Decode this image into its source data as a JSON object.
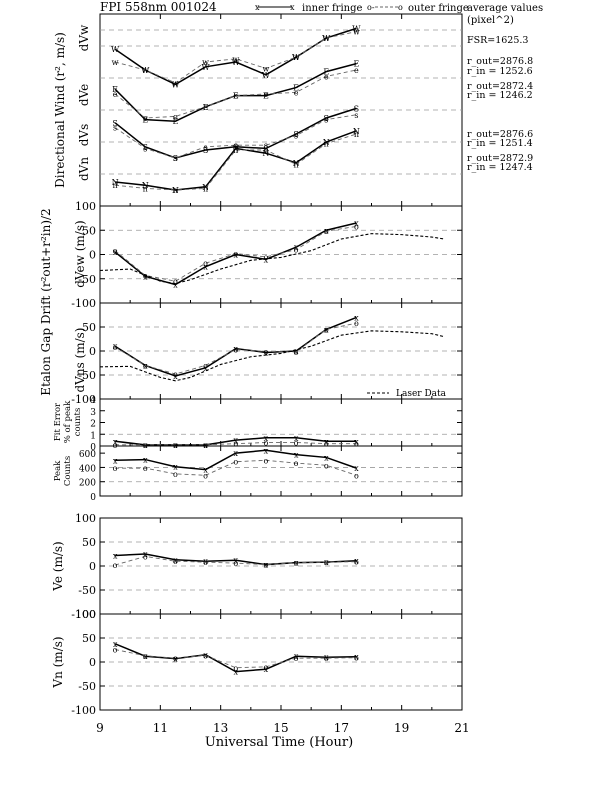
{
  "figure": {
    "title": "FPI 558nm 001024",
    "legend_inner": "inner fringe",
    "legend_outer": "outer fringe",
    "average_label_1": "average values",
    "average_label_2": "(pixel^2)",
    "xlabel": "Universal Time (Hour)",
    "laser_label": "Laser Data",
    "annotations": [
      "FSR=1625.3",
      "r_out=2876.8",
      "r_in = 1252.6",
      "r_out=2872.4",
      "r_in = 1246.2",
      "r_out=2876.6",
      "r_in = 1251.4",
      "r_out=2872.9",
      "r_in = 1247.4"
    ],
    "ylabel_top": "Directional Wind (r², m/s)",
    "ylabel_mid": "Etalon Gap Drift (r²out+r²in)/2",
    "ylabel_bottom": "Vn (m/s)"
  },
  "chart_data": [
    {
      "type": "line",
      "panel": "directional",
      "xlim": [
        9,
        21
      ],
      "ylabel_parts": [
        "dVw",
        "dVe",
        "dVs",
        "dVn"
      ],
      "series": [
        {
          "name": "dVw inner",
          "marker": "W",
          "x": [
            9.5,
            10.5,
            11.5,
            12.5,
            13.5,
            14.5,
            15.5,
            16.5,
            17.5
          ],
          "y": [
            18,
            5,
            -4,
            7,
            10,
            2,
            13,
            25,
            31
          ]
        },
        {
          "name": "dVw outer",
          "marker": "W",
          "x": [
            9.5,
            10.5,
            11.5,
            12.5,
            13.5,
            14.5,
            15.5,
            16.5,
            17.5
          ],
          "y": [
            10,
            5,
            -3,
            10,
            12,
            6,
            13,
            25,
            29
          ]
        },
        {
          "name": "dVe inner",
          "marker": "E",
          "x": [
            9.5,
            10.5,
            11.5,
            12.5,
            13.5,
            14.5,
            15.5,
            16.5,
            17.5
          ],
          "y": [
            -7,
            -26,
            -27,
            -18,
            -11,
            -11,
            -6,
            4,
            9
          ]
        },
        {
          "name": "dVe outer",
          "marker": "E",
          "x": [
            9.5,
            10.5,
            11.5,
            12.5,
            13.5,
            14.5,
            15.5,
            16.5,
            17.5
          ],
          "y": [
            -10,
            -25,
            -24,
            -18,
            -11,
            -10,
            -9,
            1,
            5
          ]
        },
        {
          "name": "dVs inner",
          "marker": "S",
          "x": [
            9.5,
            10.5,
            11.5,
            12.5,
            13.5,
            14.5,
            15.5,
            16.5,
            17.5
          ],
          "y": [
            -28,
            -43,
            -50,
            -45,
            -43,
            -44,
            -35,
            -25,
            -19
          ]
        },
        {
          "name": "dVs outer",
          "marker": "S",
          "x": [
            9.5,
            10.5,
            11.5,
            12.5,
            13.5,
            14.5,
            15.5,
            16.5,
            17.5
          ],
          "y": [
            -31,
            -44,
            -50,
            -43,
            -42,
            -42,
            -36,
            -26,
            -23
          ]
        },
        {
          "name": "dVn inner",
          "marker": "N",
          "x": [
            9.5,
            10.5,
            11.5,
            12.5,
            13.5,
            14.5,
            15.5,
            16.5,
            17.5
          ],
          "y": [
            -65,
            -67,
            -70,
            -68,
            -44,
            -47,
            -53,
            -40,
            -33
          ]
        },
        {
          "name": "dVn outer",
          "marker": "N",
          "x": [
            9.5,
            10.5,
            11.5,
            12.5,
            13.5,
            14.5,
            15.5,
            16.5,
            17.5
          ],
          "y": [
            -67,
            -69,
            -70,
            -69,
            -45,
            -45,
            -54,
            -41,
            -35
          ]
        }
      ]
    },
    {
      "type": "line",
      "panel": "dVew",
      "ylabel": "dVew (m/s)",
      "xlim": [
        9,
        21
      ],
      "ylim": [
        -100,
        100
      ],
      "series": [
        {
          "name": "inner fringe",
          "x": [
            9.5,
            10.5,
            11.5,
            12.5,
            13.5,
            14.5,
            15.5,
            16.5,
            17.5
          ],
          "y": [
            5,
            -45,
            -62,
            -25,
            0,
            -10,
            15,
            50,
            65
          ]
        },
        {
          "name": "outer fringe",
          "x": [
            9.5,
            10.5,
            11.5,
            12.5,
            13.5,
            14.5,
            15.5,
            16.5,
            17.5
          ],
          "y": [
            8,
            -43,
            -55,
            -18,
            2,
            -5,
            10,
            48,
            58
          ]
        },
        {
          "name": "Laser Data",
          "x": [
            9,
            10,
            11,
            11.5,
            12,
            13,
            14,
            15,
            16,
            17,
            18,
            19,
            20,
            20.4
          ],
          "y": [
            -33,
            -30,
            -55,
            -60,
            -52,
            -30,
            -12,
            -6,
            8,
            32,
            43,
            41,
            36,
            32
          ]
        }
      ]
    },
    {
      "type": "line",
      "panel": "dVns",
      "ylabel": "dVns (m/s)",
      "xlim": [
        9,
        21
      ],
      "ylim": [
        -100,
        100
      ],
      "series": [
        {
          "name": "inner fringe",
          "x": [
            9.5,
            10.5,
            11.5,
            12.5,
            13.5,
            14.5,
            15.5,
            16.5,
            17.5
          ],
          "y": [
            10,
            -30,
            -52,
            -35,
            5,
            -3,
            0,
            45,
            70
          ]
        },
        {
          "name": "outer fringe",
          "x": [
            9.5,
            10.5,
            11.5,
            12.5,
            13.5,
            14.5,
            15.5,
            16.5,
            17.5
          ],
          "y": [
            8,
            -30,
            -48,
            -30,
            3,
            -1,
            -2,
            45,
            58
          ]
        },
        {
          "name": "Laser Data",
          "x": [
            9,
            10,
            11,
            11.5,
            12,
            13,
            14,
            15,
            16,
            17,
            18,
            19,
            20,
            20.4
          ],
          "y": [
            -33,
            -32,
            -55,
            -62,
            -55,
            -28,
            -12,
            -5,
            10,
            33,
            42,
            40,
            36,
            30
          ]
        }
      ]
    },
    {
      "type": "line",
      "panel": "fit_error",
      "ylabel": "Fit Error % of peak counts",
      "xlim": [
        9,
        21
      ],
      "ylim": [
        0,
        4
      ],
      "series": [
        {
          "name": "inner fringe",
          "x": [
            9.5,
            10.5,
            11.5,
            12.5,
            13.5,
            14.5,
            15.5,
            16.5,
            17.5
          ],
          "y": [
            0.4,
            0.1,
            0.1,
            0.1,
            0.5,
            0.7,
            0.7,
            0.4,
            0.4
          ]
        },
        {
          "name": "outer fringe",
          "x": [
            9.5,
            10.5,
            11.5,
            12.5,
            13.5,
            14.5,
            15.5,
            16.5,
            17.5
          ],
          "y": [
            0.1,
            0.1,
            0.1,
            0.1,
            0.2,
            0.3,
            0.3,
            0.2,
            0.2
          ]
        }
      ]
    },
    {
      "type": "line",
      "panel": "peak_counts",
      "ylabel": "Peak Counts",
      "xlim": [
        9,
        21
      ],
      "ylim": [
        0,
        700
      ],
      "series": [
        {
          "name": "inner fringe",
          "x": [
            9.5,
            10.5,
            11.5,
            12.5,
            13.5,
            14.5,
            15.5,
            16.5,
            17.5
          ],
          "y": [
            500,
            510,
            410,
            370,
            600,
            640,
            580,
            540,
            390
          ]
        },
        {
          "name": "outer fringe",
          "x": [
            9.5,
            10.5,
            11.5,
            12.5,
            13.5,
            14.5,
            15.5,
            16.5,
            17.5
          ],
          "y": [
            390,
            390,
            310,
            290,
            480,
            500,
            460,
            430,
            290
          ]
        }
      ]
    },
    {
      "type": "line",
      "panel": "Ve",
      "ylabel": "Ve (m/s)",
      "xlim": [
        9,
        21
      ],
      "ylim": [
        -100,
        100
      ],
      "series": [
        {
          "name": "inner fringe",
          "x": [
            9.5,
            10.5,
            11.5,
            12.5,
            13.5,
            14.5,
            15.5,
            16.5,
            17.5
          ],
          "y": [
            22,
            25,
            13,
            10,
            12,
            3,
            7,
            8,
            11
          ]
        },
        {
          "name": "outer fringe",
          "x": [
            9.5,
            10.5,
            11.5,
            12.5,
            13.5,
            14.5,
            15.5,
            16.5,
            17.5
          ],
          "y": [
            2,
            20,
            10,
            8,
            6,
            3,
            7,
            8,
            9
          ]
        }
      ]
    },
    {
      "type": "line",
      "panel": "Vn",
      "ylabel": "Vn (m/s)",
      "xlim": [
        9,
        21
      ],
      "ylim": [
        -100,
        100
      ],
      "series": [
        {
          "name": "inner fringe",
          "x": [
            9.5,
            10.5,
            11.5,
            12.5,
            13.5,
            14.5,
            15.5,
            16.5,
            17.5
          ],
          "y": [
            38,
            12,
            7,
            15,
            -20,
            -15,
            12,
            10,
            11
          ]
        },
        {
          "name": "outer fringe",
          "x": [
            9.5,
            10.5,
            11.5,
            12.5,
            13.5,
            14.5,
            15.5,
            16.5,
            17.5
          ],
          "y": [
            26,
            13,
            8,
            14,
            -12,
            -10,
            8,
            8,
            9
          ]
        }
      ]
    }
  ]
}
